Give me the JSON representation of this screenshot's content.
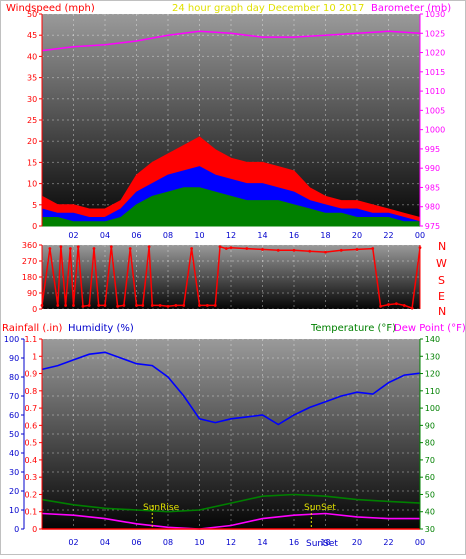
{
  "chart_data": [
    {
      "type": "area",
      "title": "24 hour graph day   December 10 2017",
      "ylabel_left": "Windspeed (mph)",
      "ylabel_right": "Barometer (mb)",
      "xticks": [
        "02",
        "04",
        "06",
        "08",
        "10",
        "12",
        "14",
        "16",
        "18",
        "20",
        "22",
        "00"
      ],
      "ylim_left": [
        0,
        50
      ],
      "yticks_left": [
        0,
        5,
        10,
        15,
        20,
        25,
        30,
        35,
        40,
        45,
        50
      ],
      "ylim_right": [
        975,
        1030
      ],
      "yticks_right": [
        975,
        980,
        985,
        990,
        995,
        1000,
        1005,
        1010,
        1015,
        1020,
        1025,
        1030
      ],
      "grid": true,
      "series": [
        {
          "name": "gust",
          "color": "#ff0000",
          "x": [
            0,
            1,
            2,
            3,
            4,
            5,
            6,
            7,
            8,
            9,
            10,
            11,
            12,
            13,
            14,
            15,
            16,
            17,
            18,
            19,
            20,
            21,
            22,
            23,
            24
          ],
          "y": [
            7,
            5,
            5,
            4,
            4,
            6,
            12,
            15,
            17,
            19,
            21,
            18,
            16,
            15,
            15,
            14,
            13,
            9,
            7,
            6,
            6,
            5,
            4,
            3,
            2
          ]
        },
        {
          "name": "average",
          "color": "#0000ff",
          "x": [
            0,
            1,
            2,
            3,
            4,
            5,
            6,
            7,
            8,
            9,
            10,
            11,
            12,
            13,
            14,
            15,
            16,
            17,
            18,
            19,
            20,
            21,
            22,
            23,
            24
          ],
          "y": [
            4,
            3,
            3,
            2,
            2,
            4,
            8,
            10,
            12,
            13,
            14,
            12,
            11,
            10,
            10,
            9,
            8,
            6,
            5,
            4,
            4,
            3,
            3,
            2,
            1
          ]
        },
        {
          "name": "speed",
          "color": "#008000",
          "x": [
            0,
            1,
            2,
            3,
            4,
            5,
            6,
            7,
            8,
            9,
            10,
            11,
            12,
            13,
            14,
            15,
            16,
            17,
            18,
            19,
            20,
            21,
            22,
            23,
            24
          ],
          "y": [
            2,
            2,
            1,
            1,
            1,
            2,
            5,
            7,
            8,
            9,
            9,
            8,
            7,
            6,
            6,
            6,
            5,
            4,
            3,
            3,
            2,
            2,
            2,
            1,
            1
          ]
        },
        {
          "name": "barometer",
          "color": "#ff00ff",
          "axis": "right",
          "x": [
            0,
            2,
            4,
            6,
            8,
            10,
            12,
            14,
            16,
            18,
            20,
            22,
            24
          ],
          "y": [
            1020.5,
            1021.5,
            1022,
            1023,
            1024.5,
            1025.5,
            1025,
            1024,
            1024,
            1024.5,
            1025,
            1025.5,
            1025
          ]
        }
      ]
    },
    {
      "type": "scatter",
      "ylabel_right_letters": [
        "N",
        "W",
        "S",
        "E",
        "N"
      ],
      "ylim": [
        0,
        360
      ],
      "yticks": [
        0,
        90,
        180,
        270,
        360
      ],
      "xticks": [
        "02",
        "04",
        "06",
        "08",
        "10",
        "12",
        "14",
        "16",
        "18",
        "20",
        "22",
        "00"
      ],
      "grid": true,
      "series": [
        {
          "name": "direction",
          "color": "#ff0000",
          "x": [
            0,
            0.5,
            1,
            1.2,
            1.5,
            1.8,
            2,
            2.3,
            2.6,
            3,
            3.3,
            3.6,
            4,
            4.4,
            4.8,
            5.2,
            5.6,
            6,
            6.4,
            6.8,
            7,
            7.5,
            8,
            8.5,
            9,
            9.5,
            10,
            10.5,
            11,
            11.3,
            11.7,
            12,
            13,
            14,
            15,
            16,
            17,
            18,
            19,
            20,
            21,
            21.5,
            22,
            22.5,
            23,
            23.5,
            24
          ],
          "y": [
            20,
            340,
            20,
            350,
            20,
            340,
            20,
            350,
            15,
            20,
            340,
            20,
            20,
            350,
            15,
            20,
            340,
            20,
            20,
            350,
            20,
            20,
            15,
            20,
            20,
            340,
            20,
            20,
            20,
            350,
            340,
            345,
            340,
            335,
            330,
            330,
            325,
            320,
            330,
            335,
            340,
            15,
            25,
            30,
            20,
            5,
            345
          ]
        }
      ]
    },
    {
      "type": "line",
      "ylabel_left": "Rainfall (.in)",
      "ylabel_left2": "Humidity (%)",
      "ylabel_right": "Temperature (°F)",
      "ylabel_right2": "Dew Point (°F)",
      "ylim_rain": [
        0,
        1.1
      ],
      "yticks_rain": [
        "0",
        "0.1",
        "0.2",
        "0.3",
        "0.4",
        "0.5",
        "0.6",
        "0.7",
        "0.8",
        "0.9",
        "1",
        "1.1"
      ],
      "ylim_hum": [
        0,
        100
      ],
      "yticks_hum": [
        0,
        10,
        20,
        30,
        40,
        50,
        60,
        70,
        80,
        90,
        100
      ],
      "ylim_temp": [
        30,
        140
      ],
      "yticks_temp": [
        30,
        40,
        50,
        60,
        70,
        80,
        90,
        100,
        110,
        120,
        130,
        140
      ],
      "xticks": [
        "02",
        "04",
        "06",
        "08",
        "10",
        "12",
        "14",
        "16",
        "18",
        "20",
        "22",
        "00"
      ],
      "annotations": [
        "SunRise",
        "SunSet",
        "SunSet"
      ],
      "sun": {
        "rise": 7,
        "set": 17.1
      },
      "grid": true,
      "series": [
        {
          "name": "Humidity",
          "color": "#0000ff",
          "axis": "hum",
          "x": [
            0,
            1,
            2,
            3,
            4,
            5,
            6,
            7,
            8,
            9,
            10,
            11,
            12,
            13,
            14,
            15,
            16,
            17,
            18,
            19,
            20,
            21,
            22,
            23,
            24
          ],
          "y": [
            84,
            86,
            89,
            92,
            93,
            90,
            87,
            86,
            80,
            70,
            58,
            56,
            58,
            59,
            60,
            55,
            60,
            64,
            67,
            70,
            72,
            71,
            77,
            81,
            82
          ]
        },
        {
          "name": "Temperature",
          "color": "#008000",
          "axis": "temp",
          "x": [
            0,
            2,
            4,
            6,
            8,
            10,
            12,
            14,
            16,
            18,
            20,
            22,
            24
          ],
          "y": [
            47,
            44,
            42,
            41,
            40,
            41,
            45,
            49,
            50,
            49,
            47,
            46,
            45
          ]
        },
        {
          "name": "Dew Point",
          "color": "#ff00ff",
          "axis": "temp",
          "x": [
            0,
            2,
            4,
            6,
            8,
            10,
            12,
            14,
            16,
            18,
            20,
            22,
            24
          ],
          "y": [
            39,
            38,
            36,
            33,
            31,
            30,
            32,
            36,
            38,
            39,
            37,
            36,
            36
          ]
        },
        {
          "name": "Rainfall",
          "color": "#ff0000",
          "axis": "rain",
          "x": [
            0,
            24
          ],
          "y": [
            0,
            0
          ]
        }
      ]
    }
  ]
}
